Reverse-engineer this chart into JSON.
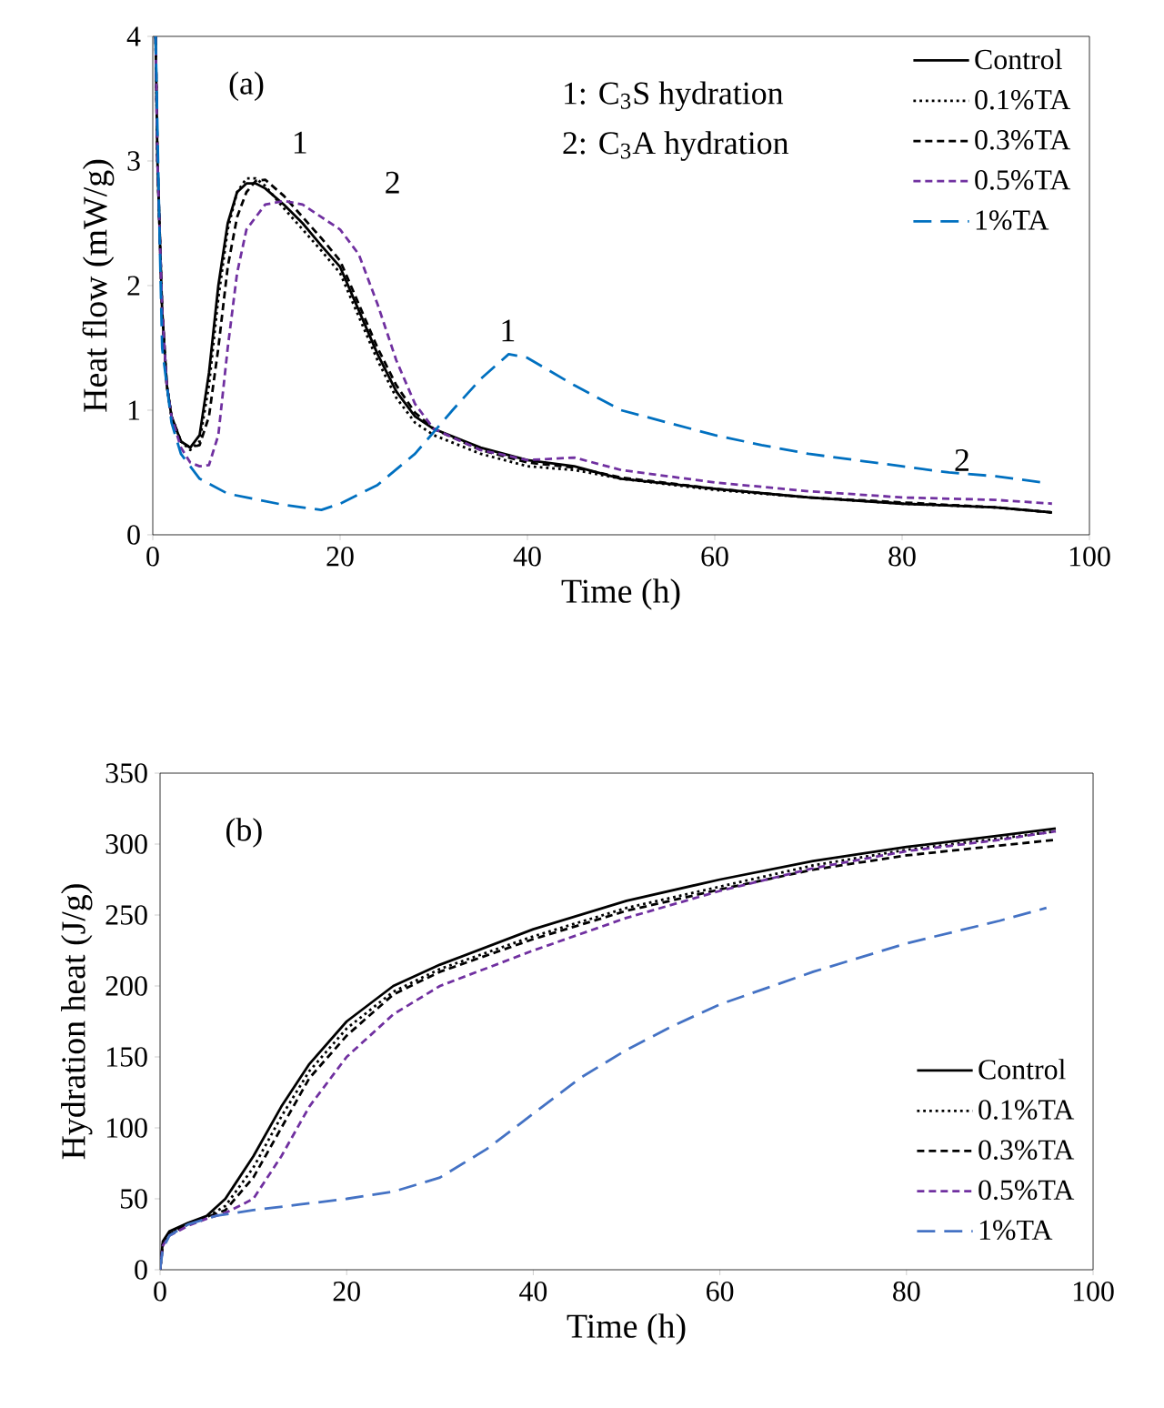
{
  "chart_data": [
    {
      "type": "line",
      "xlabel": "Time (h)",
      "ylabel": "Heat flow (mW/g)",
      "xlim": [
        0,
        100
      ],
      "xticks": [
        0,
        20,
        40,
        60,
        80,
        100
      ],
      "ylim": [
        0,
        4
      ],
      "yticks": [
        0,
        1,
        2,
        3,
        4
      ],
      "grid": false,
      "legend": "top right",
      "marker": "none",
      "annotations": [
        "(a)",
        "1: C$_{3}$S hydration",
        "2: C$_{3}$A hydration",
        "1",
        "2",
        "1",
        "2"
      ],
      "series": [
        {
          "name": "Control",
          "color": "#000000",
          "line_style": "solid",
          "x": [
            0.3,
            0.5,
            1,
            1.5,
            2,
            3,
            4,
            5,
            6,
            7,
            8,
            9,
            10,
            11,
            12,
            14,
            16,
            18,
            20,
            22,
            24,
            26,
            28,
            30,
            35,
            40,
            45,
            50,
            60,
            70,
            80,
            90,
            96
          ],
          "values": [
            4,
            3.0,
            1.8,
            1.2,
            0.95,
            0.75,
            0.7,
            0.8,
            1.3,
            2.0,
            2.5,
            2.75,
            2.82,
            2.82,
            2.78,
            2.65,
            2.5,
            2.32,
            2.15,
            1.8,
            1.45,
            1.15,
            0.95,
            0.85,
            0.7,
            0.6,
            0.55,
            0.45,
            0.37,
            0.3,
            0.25,
            0.22,
            0.18
          ]
        },
        {
          "name": "0.1%TA",
          "color": "#000000",
          "line_style": "dotted",
          "x": [
            0.3,
            0.5,
            1,
            1.5,
            2,
            3,
            4,
            5,
            6,
            7,
            8,
            9,
            10,
            11,
            12,
            14,
            16,
            18,
            20,
            22,
            24,
            26,
            28,
            30,
            35,
            40,
            45,
            50,
            60,
            70,
            80,
            90,
            96
          ],
          "values": [
            4,
            3.0,
            1.8,
            1.2,
            0.95,
            0.75,
            0.68,
            0.75,
            1.2,
            1.9,
            2.45,
            2.75,
            2.86,
            2.86,
            2.8,
            2.62,
            2.45,
            2.28,
            2.1,
            1.75,
            1.4,
            1.1,
            0.9,
            0.8,
            0.65,
            0.55,
            0.52,
            0.45,
            0.36,
            0.3,
            0.25,
            0.22,
            0.18
          ]
        },
        {
          "name": "0.3%TA",
          "color": "#000000",
          "line_style": "dashed",
          "x": [
            0.3,
            0.5,
            1,
            1.5,
            2,
            3,
            4,
            5,
            6,
            7,
            8,
            9,
            10,
            11,
            12,
            14,
            16,
            18,
            20,
            22,
            24,
            26,
            28,
            30,
            35,
            40,
            45,
            50,
            60,
            70,
            80,
            90,
            96
          ],
          "values": [
            4,
            3.0,
            1.8,
            1.2,
            0.95,
            0.75,
            0.7,
            0.72,
            0.95,
            1.5,
            2.15,
            2.55,
            2.75,
            2.84,
            2.85,
            2.72,
            2.55,
            2.38,
            2.2,
            1.85,
            1.5,
            1.2,
            0.98,
            0.85,
            0.68,
            0.58,
            0.54,
            0.46,
            0.37,
            0.3,
            0.26,
            0.22,
            0.18
          ]
        },
        {
          "name": "0.5%TA",
          "color": "#7030a0",
          "line_style": "dashed",
          "x": [
            0.3,
            0.5,
            1,
            1.5,
            2,
            3,
            4,
            5,
            6,
            7,
            8,
            9,
            10,
            12,
            14,
            16,
            18,
            20,
            22,
            24,
            26,
            28,
            30,
            35,
            40,
            45,
            50,
            60,
            70,
            80,
            90,
            96
          ],
          "values": [
            4,
            3.0,
            1.8,
            1.2,
            0.95,
            0.7,
            0.58,
            0.55,
            0.56,
            0.8,
            1.5,
            2.1,
            2.45,
            2.65,
            2.68,
            2.65,
            2.55,
            2.45,
            2.25,
            1.85,
            1.4,
            1.05,
            0.85,
            0.68,
            0.6,
            0.62,
            0.52,
            0.42,
            0.35,
            0.3,
            0.28,
            0.25
          ]
        },
        {
          "name": "1%TA",
          "color": "#0070c0",
          "line_style": "long dashed",
          "x": [
            0.3,
            0.7,
            1,
            2,
            3,
            5,
            8,
            10,
            14,
            18,
            20,
            24,
            28,
            32,
            35,
            38,
            40,
            45,
            50,
            55,
            60,
            65,
            70,
            75,
            80,
            85,
            90,
            95
          ],
          "values": [
            4,
            2.5,
            1.5,
            0.9,
            0.65,
            0.45,
            0.33,
            0.3,
            0.24,
            0.2,
            0.25,
            0.4,
            0.65,
            1.0,
            1.25,
            1.45,
            1.42,
            1.2,
            1.0,
            0.9,
            0.8,
            0.72,
            0.65,
            0.6,
            0.55,
            0.5,
            0.47,
            0.42
          ]
        }
      ]
    },
    {
      "type": "line",
      "xlabel": "Time (h)",
      "ylabel": "Hydration heat (J/g)",
      "xlim": [
        0,
        100
      ],
      "xticks": [
        0,
        20,
        40,
        60,
        80,
        100
      ],
      "ylim": [
        0,
        350
      ],
      "yticks": [
        0,
        50,
        100,
        150,
        200,
        250,
        300,
        350
      ],
      "grid": false,
      "legend": "bottom right",
      "marker": "none",
      "annotations": [
        "(b)"
      ],
      "series": [
        {
          "name": "Control",
          "color": "#000000",
          "line_style": "solid",
          "x": [
            0,
            0.3,
            1,
            3,
            5,
            7,
            10,
            13,
            16,
            20,
            25,
            30,
            40,
            50,
            60,
            70,
            80,
            90,
            96
          ],
          "values": [
            0,
            20,
            27,
            33,
            38,
            50,
            80,
            115,
            145,
            175,
            200,
            215,
            240,
            260,
            275,
            288,
            298,
            306,
            311
          ]
        },
        {
          "name": "0.1%TA",
          "color": "#000000",
          "line_style": "dotted",
          "x": [
            0,
            0.3,
            1,
            3,
            5,
            7,
            10,
            13,
            16,
            20,
            25,
            30,
            40,
            50,
            60,
            70,
            80,
            90,
            96
          ],
          "values": [
            0,
            18,
            25,
            32,
            37,
            45,
            72,
            108,
            140,
            170,
            196,
            212,
            235,
            255,
            270,
            285,
            296,
            304,
            309
          ]
        },
        {
          "name": "0.3%TA",
          "color": "#000000",
          "line_style": "dashed",
          "x": [
            0,
            0.3,
            1,
            3,
            5,
            7,
            10,
            13,
            16,
            20,
            25,
            30,
            40,
            50,
            60,
            70,
            80,
            90,
            96
          ],
          "values": [
            0,
            18,
            25,
            32,
            37,
            42,
            65,
            100,
            135,
            165,
            194,
            210,
            233,
            253,
            268,
            282,
            292,
            299,
            303
          ]
        },
        {
          "name": "0.5%TA",
          "color": "#7030a0",
          "line_style": "dashed",
          "x": [
            0,
            0.3,
            1,
            3,
            5,
            7,
            10,
            13,
            16,
            20,
            25,
            30,
            40,
            50,
            60,
            70,
            80,
            90,
            96
          ],
          "values": [
            0,
            17,
            24,
            31,
            36,
            40,
            50,
            80,
            115,
            150,
            180,
            200,
            225,
            248,
            267,
            283,
            295,
            303,
            309
          ]
        },
        {
          "name": "1%TA",
          "color": "#4472c4",
          "line_style": "long dashed",
          "x": [
            0,
            0.3,
            1,
            3,
            6,
            10,
            15,
            20,
            25,
            30,
            35,
            40,
            45,
            50,
            55,
            60,
            70,
            80,
            90,
            95
          ],
          "values": [
            0,
            15,
            24,
            32,
            38,
            42,
            46,
            50,
            55,
            65,
            85,
            110,
            135,
            155,
            172,
            187,
            210,
            230,
            246,
            255
          ]
        }
      ]
    }
  ]
}
